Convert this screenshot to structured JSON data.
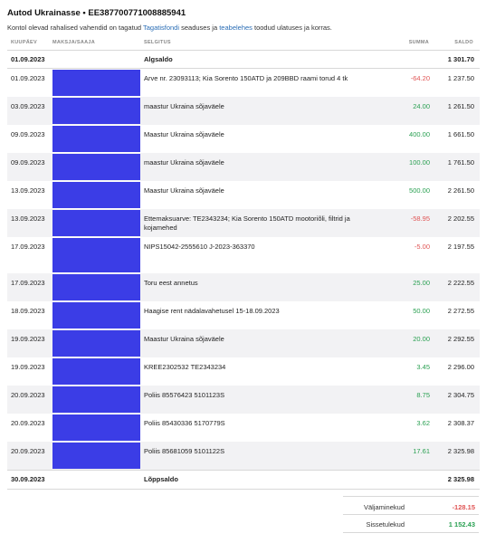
{
  "account": {
    "title": "Autod Ukrainasse • EE387700771008885941",
    "intro_prefix": "Kontol olevad rahalised vahendid on tagatud ",
    "intro_link1": "Tagatisfondi",
    "intro_middle": " seaduses ja ",
    "intro_link2": "teabelehes",
    "intro_suffix": " toodud ulatuses ja korras."
  },
  "columns": {
    "date": "KUUPÄEV",
    "payer": "MAKSJA/SAAJA",
    "description": "SELGITUS",
    "amount": "SUMMA",
    "balance": "SALDO"
  },
  "opening": {
    "date": "01.09.2023",
    "label": "Algsaldo",
    "balance": "1 301.70"
  },
  "transactions": [
    {
      "date": "01.09.2023",
      "description": "Arve nr. 23093113; Kia Sorento 150ATD ja 209BBD raami torud 4 tk",
      "description2": "",
      "amount": "-64.20",
      "sign": "neg",
      "balance": "1 237.50"
    },
    {
      "date": "03.09.2023",
      "description": "maastur Ukraina sõjaväele",
      "description2": "",
      "amount": "24.00",
      "sign": "pos",
      "balance": "1 261.50"
    },
    {
      "date": "09.09.2023",
      "description": "Maastur Ukraina sõjaväele",
      "description2": "",
      "amount": "400.00",
      "sign": "pos",
      "balance": "1 661.50"
    },
    {
      "date": "09.09.2023",
      "description": "maastur Ukraina sõjaväele",
      "description2": "",
      "amount": "100.00",
      "sign": "pos",
      "balance": "1 761.50"
    },
    {
      "date": "13.09.2023",
      "description": "Maastur Ukraina sõjaväele",
      "description2": "",
      "amount": "500.00",
      "sign": "pos",
      "balance": "2 261.50"
    },
    {
      "date": "13.09.2023",
      "description": "Ettemaksuarve: TE2343234; Kia Sorento 150ATD mootoriõli, filtrid ja",
      "description2": "kojamehed",
      "amount": "-58.95",
      "sign": "neg",
      "balance": "2 202.55"
    },
    {
      "date": "17.09.2023",
      "description": "NIPS15042-2555610 J-2023-363370",
      "description2": "",
      "amount": "-5.00",
      "sign": "neg",
      "balance": "2 197.55"
    },
    {
      "date": "17.09.2023",
      "description": "Toru eest annetus",
      "description2": "",
      "amount": "25.00",
      "sign": "pos",
      "balance": "2 222.55"
    },
    {
      "date": "18.09.2023",
      "description": "Haagise rent nädalavahetusel 15-18.09.2023",
      "description2": "",
      "amount": "50.00",
      "sign": "pos",
      "balance": "2 272.55"
    },
    {
      "date": "19.09.2023",
      "description": "Maastur Ukraina sõjaväele",
      "description2": "",
      "amount": "20.00",
      "sign": "pos",
      "balance": "2 292.55"
    },
    {
      "date": "19.09.2023",
      "description": "KREE2302532 TE2343234",
      "description2": "",
      "amount": "3.45",
      "sign": "pos",
      "balance": "2 296.00"
    },
    {
      "date": "20.09.2023",
      "description": "Poliis 85576423 5101123S",
      "description2": "",
      "amount": "8.75",
      "sign": "pos",
      "balance": "2 304.75"
    },
    {
      "date": "20.09.2023",
      "description": "Poliis 85430336 5170779S",
      "description2": "",
      "amount": "3.62",
      "sign": "pos",
      "balance": "2 308.37"
    },
    {
      "date": "20.09.2023",
      "description": "Poliis 85681059 5101122S",
      "description2": "",
      "amount": "17.61",
      "sign": "pos",
      "balance": "2 325.98"
    }
  ],
  "closing": {
    "date": "30.09.2023",
    "label": "Lõppsaldo",
    "balance": "2 325.98"
  },
  "totals": {
    "outgoing_label": "Väljaminekud",
    "outgoing_value": "-128.15",
    "incoming_label": "Sissetulekud",
    "incoming_value": "1 152.43"
  },
  "colors": {
    "negative": "#e05555",
    "positive": "#2aa052",
    "link": "#2a6db5",
    "redaction": "#3b3de6",
    "row_alt": "#f2f2f4"
  }
}
